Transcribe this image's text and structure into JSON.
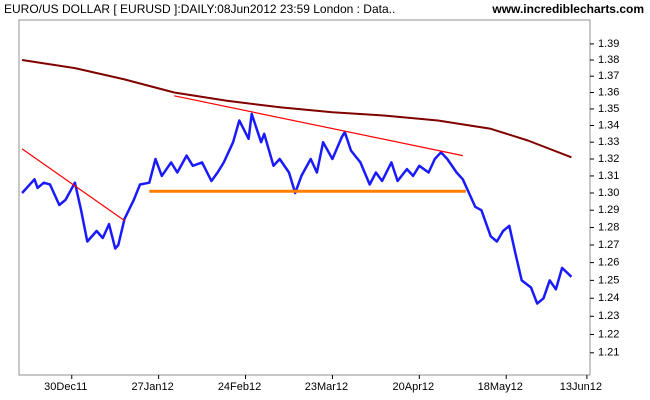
{
  "chart_data": {
    "type": "line",
    "title": "EURO/US DOLLAR [ EURUSD ]:DAILY:08Jun2012 23:59 London : Data..",
    "source": "www.incrediblecharts.com",
    "log_scale": true,
    "grid": false,
    "xlim": [
      "2011-12-13",
      "2012-06-14"
    ],
    "xticks": [
      {
        "value": "2011-12-30",
        "label": "30Dec11"
      },
      {
        "value": "2012-01-27",
        "label": "27Jan12"
      },
      {
        "value": "2012-02-24",
        "label": "24Feb12"
      },
      {
        "value": "2012-03-23",
        "label": "23Mar12"
      },
      {
        "value": "2012-04-20",
        "label": "20Apr12"
      },
      {
        "value": "2012-05-18",
        "label": "18May12"
      },
      {
        "value": "2012-06-13",
        "label": "13Jun12"
      }
    ],
    "ylim": [
      1.198,
      1.405
    ],
    "yticks": [
      1.21,
      1.22,
      1.23,
      1.24,
      1.25,
      1.26,
      1.27,
      1.28,
      1.29,
      {
        "value": 1.3,
        "label": "1.30"
      },
      1.31,
      1.32,
      1.33,
      1.34,
      1.35,
      1.36,
      1.37,
      1.38,
      1.39
    ],
    "series": [
      {
        "color": "#1a1aff",
        "width": 2.5,
        "x": [
          "2011-12-14",
          "2011-12-18",
          "2011-12-19",
          "2011-12-21",
          "2011-12-23",
          "2011-12-26",
          "2011-12-28",
          "2011-12-31",
          "2012-01-02",
          "2012-01-04",
          "2012-01-07",
          "2012-01-09",
          "2012-01-11",
          "2012-01-13",
          "2012-01-14",
          "2012-01-16",
          "2012-01-19",
          "2012-01-21",
          "2012-01-24",
          "2012-01-26",
          "2012-01-28",
          "2012-01-31",
          "2012-02-02",
          "2012-02-05",
          "2012-02-07",
          "2012-02-10",
          "2012-02-13",
          "2012-02-15",
          "2012-02-17",
          "2012-02-20",
          "2012-02-22",
          "2012-02-25",
          "2012-02-26",
          "2012-02-29",
          "2012-03-01",
          "2012-03-04",
          "2012-03-06",
          "2012-03-09",
          "2012-03-11",
          "2012-03-13",
          "2012-03-16",
          "2012-03-18",
          "2012-03-20",
          "2012-03-23",
          "2012-03-26",
          "2012-03-27",
          "2012-03-29",
          "2012-04-01",
          "2012-04-04",
          "2012-04-06",
          "2012-04-08",
          "2012-04-11",
          "2012-04-13",
          "2012-04-16",
          "2012-04-18",
          "2012-04-20",
          "2012-04-23",
          "2012-04-25",
          "2012-04-27",
          "2012-04-29",
          "2012-05-02",
          "2012-05-04",
          "2012-05-06",
          "2012-05-08",
          "2012-05-10",
          "2012-05-13",
          "2012-05-15",
          "2012-05-17",
          "2012-05-19",
          "2012-05-21",
          "2012-05-23",
          "2012-05-26",
          "2012-05-28",
          "2012-05-30",
          "2012-06-01",
          "2012-06-03",
          "2012-06-05",
          "2012-06-08"
        ],
        "values": [
          1.3,
          1.308,
          1.303,
          1.306,
          1.305,
          1.293,
          1.296,
          1.306,
          1.29,
          1.272,
          1.278,
          1.274,
          1.282,
          1.268,
          1.27,
          1.285,
          1.296,
          1.305,
          1.306,
          1.32,
          1.31,
          1.318,
          1.312,
          1.322,
          1.316,
          1.318,
          1.307,
          1.312,
          1.318,
          1.33,
          1.343,
          1.332,
          1.347,
          1.33,
          1.335,
          1.316,
          1.32,
          1.312,
          1.3,
          1.31,
          1.32,
          1.312,
          1.33,
          1.32,
          1.333,
          1.336,
          1.325,
          1.318,
          1.305,
          1.312,
          1.307,
          1.318,
          1.307,
          1.314,
          1.31,
          1.316,
          1.312,
          1.32,
          1.324,
          1.32,
          1.312,
          1.308,
          1.3,
          1.292,
          1.29,
          1.275,
          1.272,
          1.278,
          1.281,
          1.265,
          1.25,
          1.246,
          1.237,
          1.24,
          1.25,
          1.245,
          1.257,
          1.252
        ]
      },
      {
        "color": "#800000",
        "width": 2,
        "x": [
          "2011-12-14",
          "2011-12-31",
          "2012-01-16",
          "2012-02-01",
          "2012-02-18",
          "2012-03-06",
          "2012-03-23",
          "2012-04-09",
          "2012-04-26",
          "2012-05-13",
          "2012-05-25",
          "2012-06-08"
        ],
        "values": [
          1.38,
          1.375,
          1.368,
          1.36,
          1.355,
          1.351,
          1.348,
          1.346,
          1.343,
          1.338,
          1.331,
          1.321
        ]
      }
    ],
    "trendlines": [
      {
        "color": "#ff0000",
        "width": 1.2,
        "x": [
          "2011-12-14",
          "2012-01-16"
        ],
        "values": [
          1.326,
          1.284
        ]
      },
      {
        "color": "#ff0000",
        "width": 1.2,
        "x": [
          "2012-02-01",
          "2012-05-04"
        ],
        "values": [
          1.358,
          1.322
        ]
      },
      {
        "color": "#ff8000",
        "width": 3,
        "x": [
          "2012-01-24",
          "2012-05-05"
        ],
        "values": [
          1.301,
          1.301
        ]
      }
    ]
  }
}
